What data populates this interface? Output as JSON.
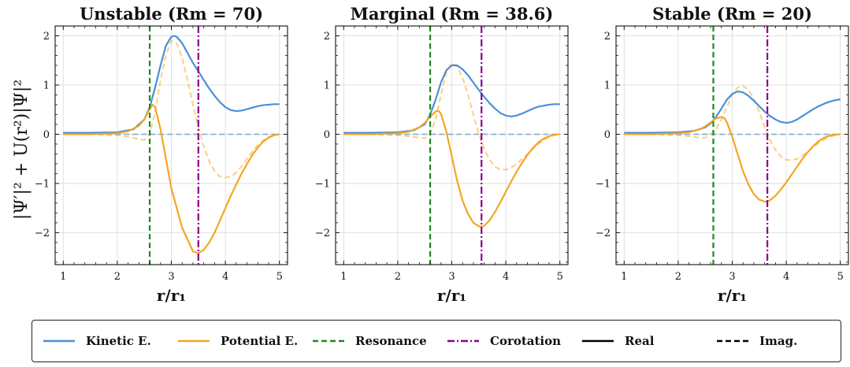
{
  "figure": {
    "ylabel": "|Ψ′|² + U(r²)|Ψ|²",
    "xlabel": "r/r₁"
  },
  "colors": {
    "kinetic": "#4a90d9",
    "potential": "#f5a623",
    "resonance": "#1a8a1a",
    "corotation": "#8b008b",
    "real": "#000000",
    "imag": "#000000",
    "grid": "#d9d9d9"
  },
  "legend": [
    {
      "label": "Kinetic E.",
      "color": "#4a90d9",
      "style": "solid"
    },
    {
      "label": "Potential E.",
      "color": "#f5a623",
      "style": "solid"
    },
    {
      "label": "Resonance",
      "color": "#1a8a1a",
      "style": "dashed"
    },
    {
      "label": "Corotation",
      "color": "#8b008b",
      "style": "dashdot"
    },
    {
      "label": "Real",
      "color": "#000000",
      "style": "solid"
    },
    {
      "label": "Imag.",
      "color": "#000000",
      "style": "dashed"
    }
  ],
  "chart_data": [
    {
      "type": "line",
      "title": "Unstable (Rm = 70)",
      "xlabel": "r/r₁",
      "ylabel": "|Ψ′|² + U(r²)|Ψ|²",
      "xlim": [
        0.85,
        5.15
      ],
      "ylim": [
        -2.65,
        2.2
      ],
      "xticks": [
        1,
        2,
        3,
        4,
        5
      ],
      "yticks": [
        -2,
        -1,
        0,
        1,
        2
      ],
      "grid": true,
      "resonance": 2.6,
      "corotation": 3.5,
      "series": [
        {
          "name": "Kinetic E. (Real)",
          "color": "#4a90d9",
          "style": "solid",
          "x": [
            1.0,
            1.5,
            2.0,
            2.3,
            2.5,
            2.6,
            2.7,
            2.8,
            2.9,
            3.0,
            3.05,
            3.1,
            3.2,
            3.3,
            3.4,
            3.5,
            3.6,
            3.7,
            3.8,
            3.9,
            4.0,
            4.1,
            4.2,
            4.3,
            4.4,
            4.5,
            4.6,
            4.7,
            4.8,
            4.9,
            5.0
          ],
          "y": [
            0.03,
            0.03,
            0.04,
            0.1,
            0.3,
            0.55,
            0.95,
            1.4,
            1.8,
            1.98,
            2.0,
            1.98,
            1.85,
            1.65,
            1.45,
            1.28,
            1.1,
            0.93,
            0.78,
            0.65,
            0.55,
            0.49,
            0.47,
            0.48,
            0.51,
            0.54,
            0.57,
            0.59,
            0.6,
            0.61,
            0.61
          ]
        },
        {
          "name": "Potential E. (Real)",
          "color": "#f5a623",
          "style": "solid",
          "x": [
            1.0,
            1.5,
            2.0,
            2.2,
            2.4,
            2.5,
            2.6,
            2.65,
            2.7,
            2.8,
            2.9,
            3.0,
            3.2,
            3.4,
            3.5,
            3.6,
            3.7,
            3.8,
            3.9,
            4.0,
            4.1,
            4.2,
            4.3,
            4.4,
            4.5,
            4.6,
            4.7,
            4.8,
            4.9,
            5.0
          ],
          "y": [
            0.0,
            0.0,
            0.02,
            0.06,
            0.17,
            0.3,
            0.52,
            0.6,
            0.55,
            0.1,
            -0.5,
            -1.1,
            -1.9,
            -2.38,
            -2.42,
            -2.35,
            -2.2,
            -2.0,
            -1.75,
            -1.5,
            -1.25,
            -1.02,
            -0.8,
            -0.6,
            -0.42,
            -0.27,
            -0.15,
            -0.07,
            -0.02,
            0.0
          ]
        },
        {
          "name": "Kinetic E. (Imag.)",
          "color": "#4a90d9",
          "style": "dashed",
          "x": [
            1.0,
            5.0
          ],
          "y": [
            0.0,
            0.0
          ]
        },
        {
          "name": "Potential E. (Imag.)",
          "color": "#f5a623",
          "style": "dashed",
          "x": [
            1.0,
            1.5,
            2.0,
            2.2,
            2.4,
            2.5,
            2.6,
            2.7,
            2.8,
            2.9,
            3.0,
            3.1,
            3.2,
            3.3,
            3.4,
            3.5,
            3.6,
            3.7,
            3.8,
            3.9,
            4.0,
            4.1,
            4.2,
            4.3,
            4.4,
            4.5,
            4.6,
            4.7,
            4.8,
            4.9,
            5.0
          ],
          "y": [
            0.0,
            0.0,
            -0.02,
            -0.05,
            -0.1,
            -0.12,
            0.0,
            0.45,
            1.1,
            1.6,
            1.9,
            1.85,
            1.55,
            1.1,
            0.6,
            0.15,
            -0.25,
            -0.55,
            -0.75,
            -0.86,
            -0.88,
            -0.86,
            -0.78,
            -0.65,
            -0.5,
            -0.35,
            -0.22,
            -0.12,
            -0.05,
            -0.01,
            0.0
          ]
        }
      ]
    },
    {
      "type": "line",
      "title": "Marginal (Rm = 38.6)",
      "xlabel": "r/r₁",
      "ylabel": "",
      "xlim": [
        0.85,
        5.15
      ],
      "ylim": [
        -2.65,
        2.2
      ],
      "xticks": [
        1,
        2,
        3,
        4,
        5
      ],
      "yticks": [
        -2,
        -1,
        0,
        1,
        2
      ],
      "grid": true,
      "resonance": 2.6,
      "corotation": 3.55,
      "series": [
        {
          "name": "Kinetic E. (Real)",
          "color": "#4a90d9",
          "style": "solid",
          "x": [
            1.0,
            1.5,
            2.0,
            2.3,
            2.5,
            2.6,
            2.7,
            2.8,
            2.9,
            3.0,
            3.1,
            3.2,
            3.3,
            3.4,
            3.5,
            3.6,
            3.7,
            3.8,
            3.9,
            4.0,
            4.1,
            4.2,
            4.3,
            4.4,
            4.5,
            4.6,
            4.7,
            4.8,
            4.9,
            5.0
          ],
          "y": [
            0.03,
            0.03,
            0.04,
            0.08,
            0.2,
            0.4,
            0.7,
            1.05,
            1.3,
            1.4,
            1.4,
            1.32,
            1.2,
            1.05,
            0.9,
            0.76,
            0.63,
            0.52,
            0.43,
            0.38,
            0.36,
            0.38,
            0.42,
            0.47,
            0.52,
            0.56,
            0.58,
            0.6,
            0.61,
            0.61
          ]
        },
        {
          "name": "Potential E. (Real)",
          "color": "#f5a623",
          "style": "solid",
          "x": [
            1.0,
            1.5,
            2.0,
            2.2,
            2.4,
            2.5,
            2.6,
            2.7,
            2.75,
            2.8,
            2.9,
            3.0,
            3.1,
            3.2,
            3.3,
            3.4,
            3.5,
            3.55,
            3.6,
            3.7,
            3.8,
            3.9,
            4.0,
            4.1,
            4.2,
            4.3,
            4.4,
            4.5,
            4.6,
            4.7,
            4.8,
            4.9,
            5.0
          ],
          "y": [
            0.0,
            0.0,
            0.02,
            0.05,
            0.14,
            0.23,
            0.36,
            0.46,
            0.48,
            0.42,
            0.05,
            -0.45,
            -0.95,
            -1.35,
            -1.62,
            -1.8,
            -1.87,
            -1.88,
            -1.86,
            -1.75,
            -1.58,
            -1.38,
            -1.17,
            -0.96,
            -0.76,
            -0.58,
            -0.42,
            -0.28,
            -0.17,
            -0.09,
            -0.04,
            -0.01,
            0.0
          ]
        },
        {
          "name": "Kinetic E. (Imag.)",
          "color": "#4a90d9",
          "style": "dashed",
          "x": [
            1.0,
            5.0
          ],
          "y": [
            0.0,
            0.0
          ]
        },
        {
          "name": "Potential E. (Imag.)",
          "color": "#f5a623",
          "style": "dashed",
          "x": [
            1.0,
            1.5,
            2.0,
            2.2,
            2.4,
            2.5,
            2.6,
            2.7,
            2.8,
            2.9,
            3.0,
            3.1,
            3.2,
            3.3,
            3.4,
            3.5,
            3.6,
            3.7,
            3.8,
            3.9,
            4.0,
            4.1,
            4.2,
            4.3,
            4.4,
            4.5,
            4.6,
            4.7,
            4.8,
            4.9,
            5.0
          ],
          "y": [
            0.0,
            0.0,
            -0.02,
            -0.04,
            -0.07,
            -0.08,
            0.0,
            0.3,
            0.8,
            1.25,
            1.45,
            1.38,
            1.15,
            0.8,
            0.4,
            0.0,
            -0.3,
            -0.52,
            -0.66,
            -0.72,
            -0.72,
            -0.68,
            -0.6,
            -0.5,
            -0.4,
            -0.3,
            -0.2,
            -0.12,
            -0.06,
            -0.02,
            0.0
          ]
        }
      ]
    },
    {
      "type": "line",
      "title": "Stable (Rm = 20)",
      "xlabel": "r/r₁",
      "ylabel": "",
      "xlim": [
        0.85,
        5.15
      ],
      "ylim": [
        -2.65,
        2.2
      ],
      "xticks": [
        1,
        2,
        3,
        4,
        5
      ],
      "yticks": [
        -2,
        -1,
        0,
        1,
        2
      ],
      "grid": true,
      "resonance": 2.65,
      "corotation": 3.65,
      "series": [
        {
          "name": "Kinetic E. (Real)",
          "color": "#4a90d9",
          "style": "solid",
          "x": [
            1.0,
            1.5,
            2.0,
            2.3,
            2.5,
            2.6,
            2.7,
            2.8,
            2.9,
            3.0,
            3.1,
            3.2,
            3.3,
            3.4,
            3.5,
            3.6,
            3.7,
            3.8,
            3.9,
            4.0,
            4.1,
            4.2,
            4.3,
            4.4,
            4.5,
            4.6,
            4.7,
            4.8,
            4.9,
            5.0
          ],
          "y": [
            0.03,
            0.03,
            0.04,
            0.07,
            0.14,
            0.22,
            0.35,
            0.52,
            0.7,
            0.82,
            0.87,
            0.85,
            0.78,
            0.68,
            0.57,
            0.46,
            0.37,
            0.3,
            0.25,
            0.23,
            0.25,
            0.3,
            0.37,
            0.44,
            0.51,
            0.57,
            0.62,
            0.66,
            0.69,
            0.71
          ]
        },
        {
          "name": "Potential E. (Real)",
          "color": "#f5a623",
          "style": "solid",
          "x": [
            1.0,
            1.5,
            2.0,
            2.2,
            2.4,
            2.5,
            2.6,
            2.7,
            2.8,
            2.85,
            2.9,
            3.0,
            3.1,
            3.2,
            3.3,
            3.4,
            3.5,
            3.6,
            3.65,
            3.7,
            3.8,
            3.9,
            4.0,
            4.1,
            4.2,
            4.3,
            4.4,
            4.5,
            4.6,
            4.7,
            4.8,
            4.9,
            5.0
          ],
          "y": [
            0.0,
            0.0,
            0.02,
            0.04,
            0.1,
            0.16,
            0.24,
            0.32,
            0.35,
            0.33,
            0.25,
            -0.05,
            -0.4,
            -0.75,
            -1.02,
            -1.22,
            -1.33,
            -1.37,
            -1.37,
            -1.34,
            -1.25,
            -1.12,
            -0.98,
            -0.82,
            -0.66,
            -0.5,
            -0.36,
            -0.24,
            -0.14,
            -0.07,
            -0.03,
            -0.01,
            0.0
          ]
        },
        {
          "name": "Kinetic E. (Imag.)",
          "color": "#4a90d9",
          "style": "dashed",
          "x": [
            1.0,
            5.0
          ],
          "y": [
            0.0,
            0.0
          ]
        },
        {
          "name": "Potential E. (Imag.)",
          "color": "#f5a623",
          "style": "dashed",
          "x": [
            1.0,
            1.5,
            2.0,
            2.2,
            2.4,
            2.5,
            2.6,
            2.7,
            2.8,
            2.9,
            3.0,
            3.1,
            3.2,
            3.3,
            3.4,
            3.5,
            3.6,
            3.7,
            3.8,
            3.9,
            4.0,
            4.1,
            4.2,
            4.3,
            4.4,
            4.5,
            4.6,
            4.7,
            4.8,
            4.9,
            5.0
          ],
          "y": [
            0.0,
            0.0,
            -0.02,
            -0.04,
            -0.07,
            -0.07,
            0.0,
            0.1,
            0.3,
            0.55,
            0.8,
            0.95,
            0.98,
            0.9,
            0.72,
            0.45,
            0.15,
            -0.12,
            -0.32,
            -0.45,
            -0.52,
            -0.53,
            -0.5,
            -0.43,
            -0.35,
            -0.26,
            -0.18,
            -0.11,
            -0.06,
            -0.02,
            0.0
          ]
        }
      ]
    }
  ]
}
